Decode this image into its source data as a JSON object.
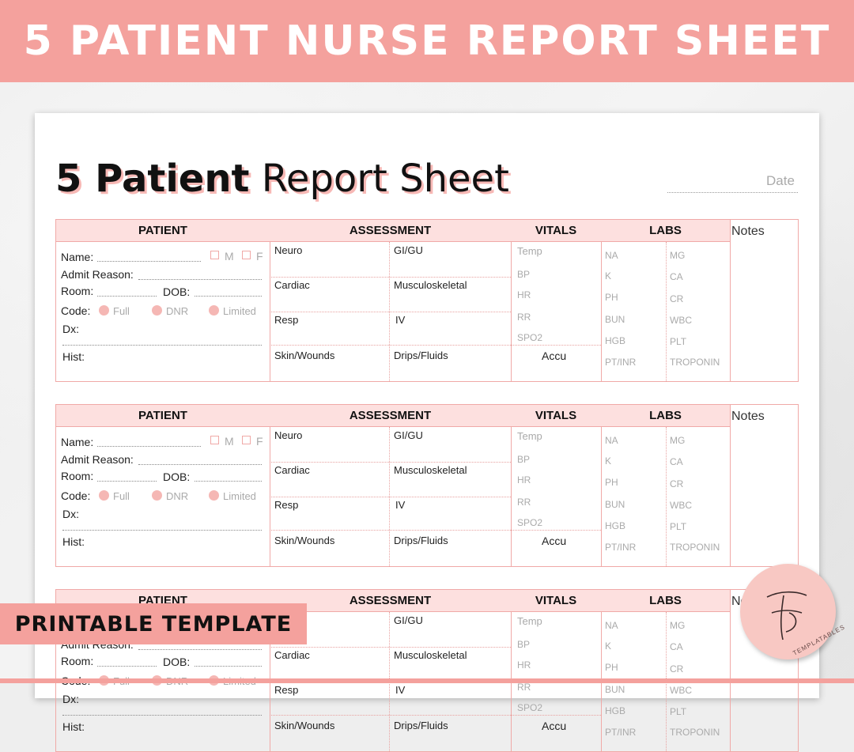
{
  "banner": {
    "title": "5 PATIENT NURSE REPORT SHEET"
  },
  "sheet": {
    "title_bold": "5 Patient",
    "title_light": "Report Sheet",
    "date_label": "Date"
  },
  "table": {
    "headers": {
      "patient": "PATIENT",
      "assessment": "ASSESSMENT",
      "vitals": "VITALS",
      "labs": "LABS",
      "notes": "Notes"
    },
    "patient_fields": {
      "name": "Name:",
      "male": "M",
      "female": "F",
      "admit": "Admit Reason:",
      "room": "Room:",
      "dob": "DOB:",
      "code": "Code:",
      "full": "Full",
      "dnr": "DNR",
      "limited": "Limited",
      "dx": "Dx:",
      "hist": "Hist:"
    },
    "assessment": {
      "neuro": "Neuro",
      "gigu": "GI/GU",
      "cardiac": "Cardiac",
      "musculo": "Musculoskeletal",
      "resp": "Resp",
      "iv": "IV",
      "skin": "Skin/Wounds",
      "drips": "Drips/Fluids"
    },
    "vitals": {
      "temp": "Temp",
      "bp": "BP",
      "hr": "HR",
      "rr": "RR",
      "spo2": "SPO2",
      "accu": "Accu"
    },
    "labs_left": [
      "NA",
      "K",
      "PH",
      "BUN",
      "HGB",
      "PT/INR"
    ],
    "labs_right": [
      "MG",
      "CA",
      "CR",
      "WBC",
      "PLT",
      "TROPONIN"
    ]
  },
  "overlay": {
    "pill": "PRINTABLE TEMPLATE",
    "logo_text": "TEMPLATABLES"
  },
  "colors": {
    "accent": "#f4a19d",
    "header_fill": "#fde0df",
    "border": "#f0a9a7"
  }
}
